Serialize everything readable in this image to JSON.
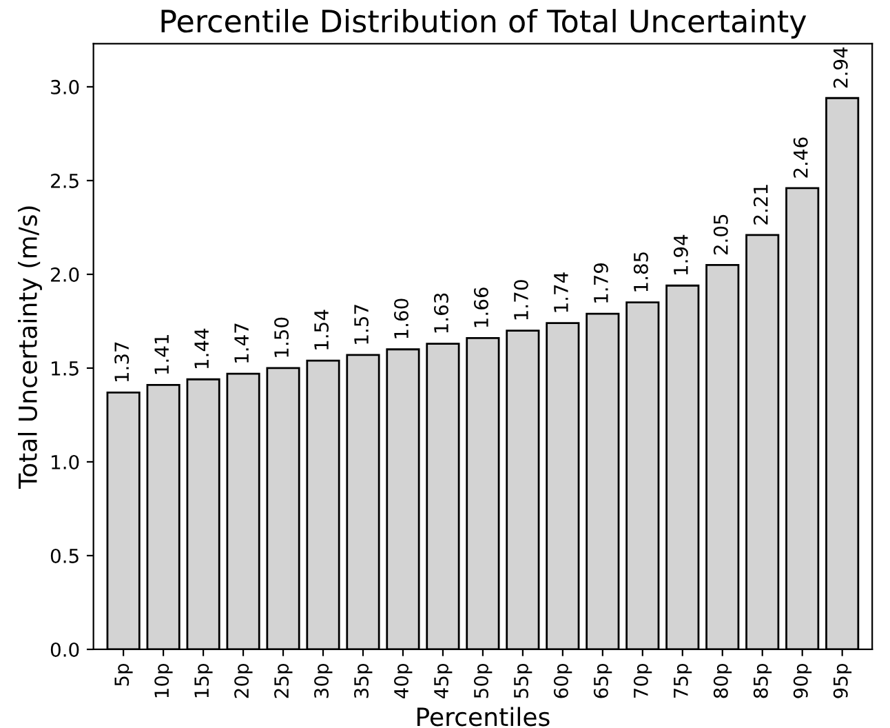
{
  "chart_data": {
    "type": "bar",
    "title": "Percentile Distribution of Total Uncertainty",
    "xlabel": "Percentiles",
    "ylabel": "Total Uncertainty (m/s)",
    "categories": [
      "5p",
      "10p",
      "15p",
      "20p",
      "25p",
      "30p",
      "35p",
      "40p",
      "45p",
      "50p",
      "55p",
      "60p",
      "65p",
      "70p",
      "75p",
      "80p",
      "85p",
      "90p",
      "95p"
    ],
    "values": [
      1.37,
      1.41,
      1.44,
      1.47,
      1.5,
      1.54,
      1.57,
      1.6,
      1.63,
      1.66,
      1.7,
      1.74,
      1.79,
      1.85,
      1.94,
      2.05,
      2.21,
      2.46,
      2.94
    ],
    "value_labels": [
      "1.37",
      "1.41",
      "1.44",
      "1.47",
      "1.50",
      "1.54",
      "1.57",
      "1.60",
      "1.63",
      "1.66",
      "1.70",
      "1.74",
      "1.79",
      "1.85",
      "1.94",
      "2.05",
      "2.21",
      "2.46",
      "2.94"
    ],
    "color": "#d3d3d3",
    "ylim": [
      0,
      3.23
    ],
    "yticks": [
      "0.0",
      "0.5",
      "1.0",
      "1.5",
      "2.0",
      "2.5",
      "3.0"
    ],
    "grid": false
  }
}
